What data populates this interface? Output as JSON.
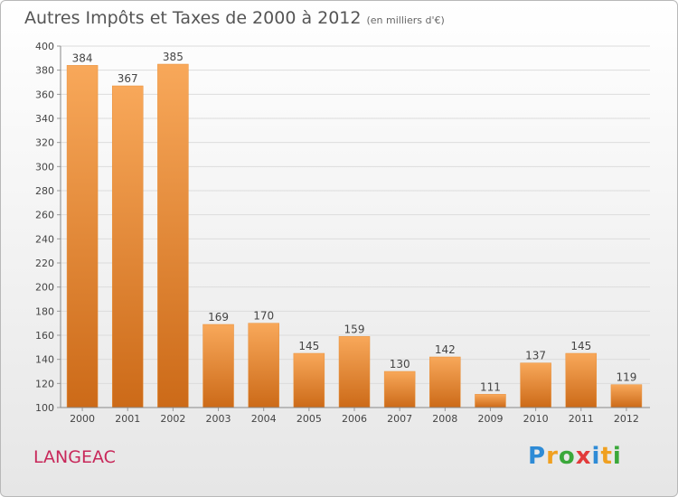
{
  "header": {
    "title": "Autres Impôts et Taxes de 2000 à 2012",
    "unit": "(en milliers d'€)"
  },
  "footer": {
    "city": "LANGEAC",
    "logo": "Proxiti",
    "logo_colors": [
      "#2e8bd6",
      "#f0a020",
      "#3aa83a",
      "#e23b3b",
      "#2e8bd6",
      "#f0a020",
      "#3aa83a"
    ]
  },
  "chart_data": {
    "type": "bar",
    "title": "Autres Impôts et Taxes de 2000 à 2012",
    "unit": "(en milliers d'€)",
    "categories": [
      "2000",
      "2001",
      "2002",
      "2003",
      "2004",
      "2005",
      "2006",
      "2007",
      "2008",
      "2009",
      "2010",
      "2011",
      "2012"
    ],
    "values": [
      384,
      367,
      385,
      169,
      170,
      145,
      159,
      130,
      142,
      111,
      137,
      145,
      119
    ],
    "ylim": [
      100,
      400
    ],
    "yticks": [
      100,
      120,
      140,
      160,
      180,
      200,
      220,
      240,
      260,
      280,
      300,
      320,
      340,
      360,
      380,
      400
    ],
    "grid": true,
    "bar_color_top": "#f8a85a",
    "bar_color_bottom": "#cc6a18"
  }
}
